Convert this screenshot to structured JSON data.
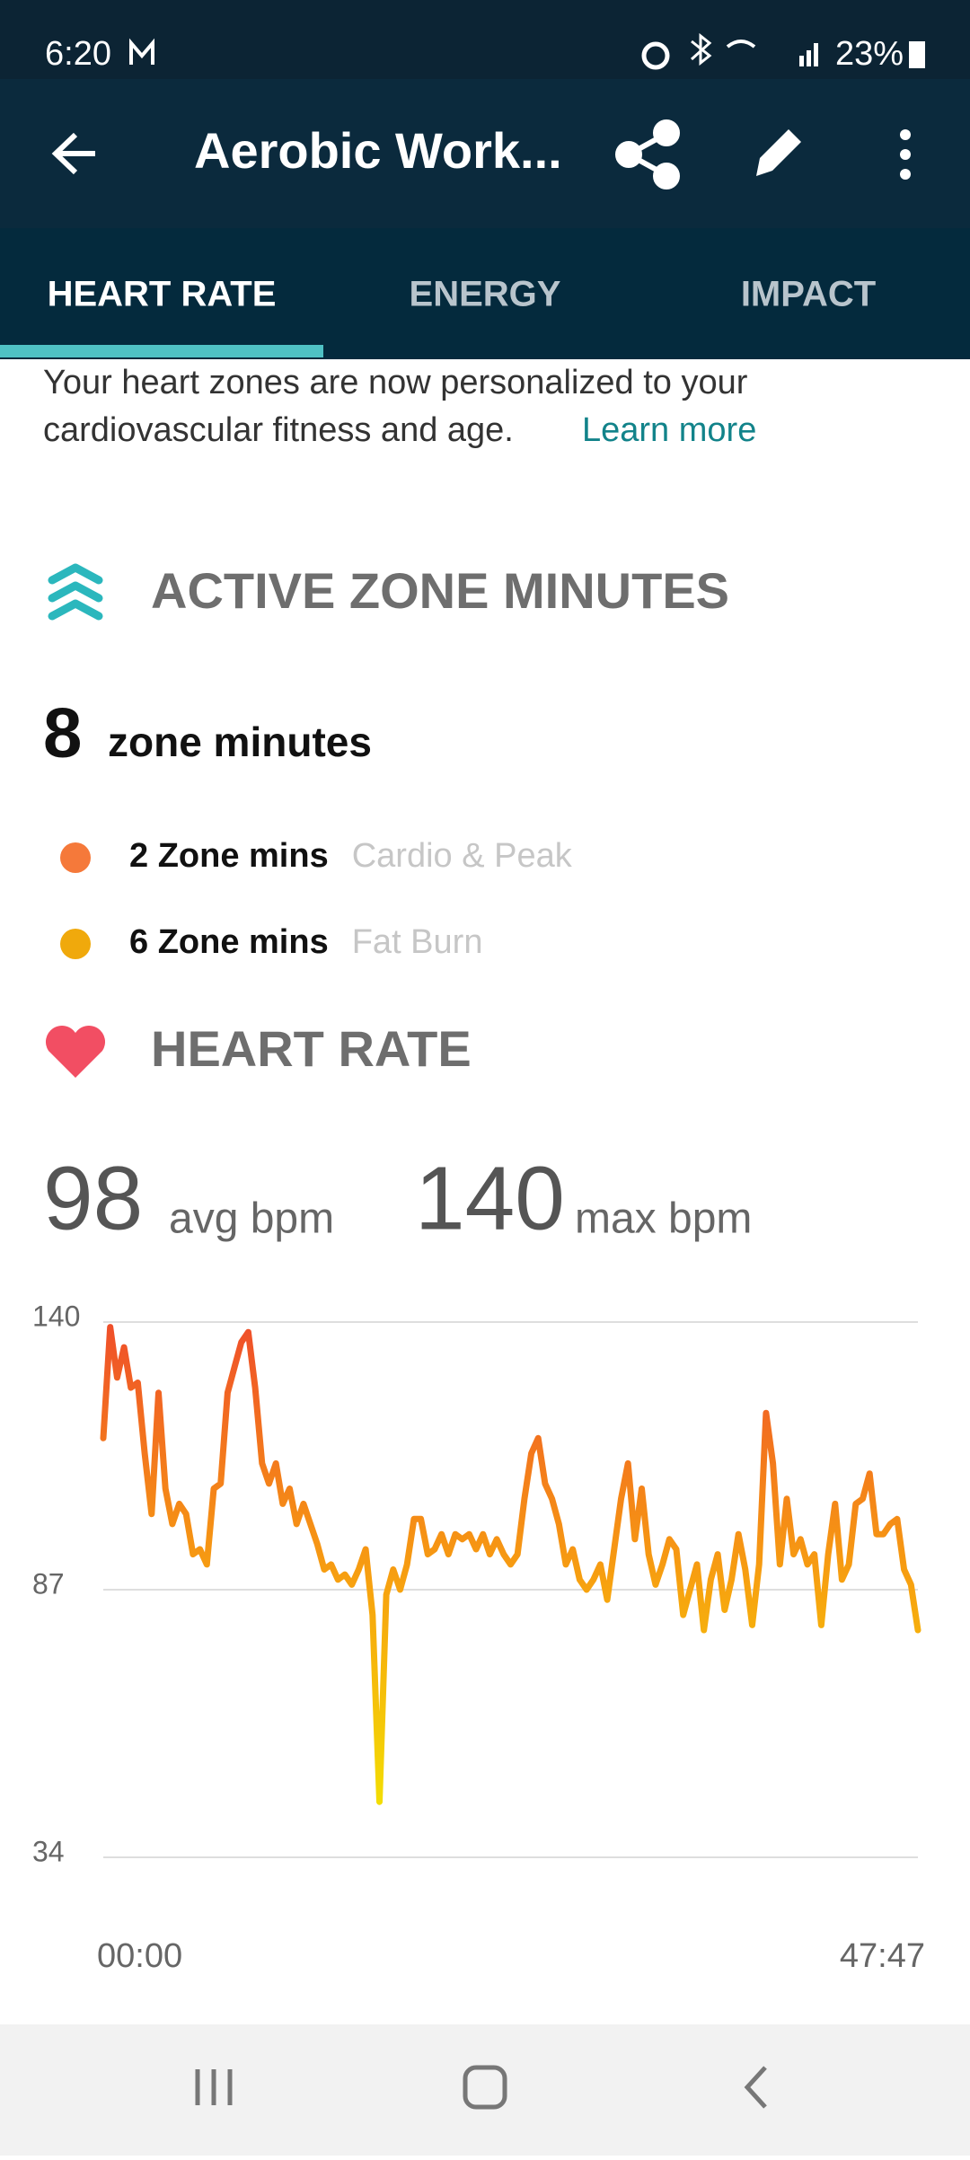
{
  "status_bar": {
    "time": "6:20",
    "battery": "23%"
  },
  "app_bar": {
    "title": "Aerobic Work..."
  },
  "tabs": [
    "HEART RATE",
    "ENERGY",
    "IMPACT"
  ],
  "notice": {
    "line1": "Your heart zones are now personalized to your",
    "line2": "cardiovascular fitness and age.",
    "link": "Learn more"
  },
  "azm": {
    "title": "ACTIVE ZONE MINUTES",
    "total": "8",
    "total_label": "zone minutes",
    "zones": [
      {
        "value": "2 Zone mins",
        "label": "Cardio & Peak",
        "color": "#f5793a"
      },
      {
        "value": "6 Zone mins",
        "label": "Fat Burn",
        "color": "#f0a90c"
      }
    ]
  },
  "heart_rate": {
    "title": "HEART RATE",
    "avg": "98",
    "avg_label": "avg bpm",
    "max": "140",
    "max_label": "max bpm"
  },
  "chart_data": {
    "type": "line",
    "x_labels": [
      "00:00",
      "47:47"
    ],
    "ylim": [
      34,
      140
    ],
    "yticks": [
      34,
      87,
      140
    ],
    "grid": true,
    "colors": [
      "#ef4e2a",
      "#f7a30f",
      "#f2ec00"
    ],
    "values": [
      117,
      139,
      129,
      135,
      127,
      128,
      114,
      102,
      126,
      107,
      100,
      104,
      102,
      94,
      95,
      92,
      107,
      108,
      126,
      131,
      136,
      138,
      127,
      112,
      108,
      112,
      104,
      107,
      100,
      104,
      100,
      96,
      91,
      92,
      89,
      90,
      88,
      91,
      95,
      82,
      45,
      86,
      91,
      87,
      92,
      101,
      101,
      94,
      95,
      98,
      94,
      98,
      97,
      98,
      95,
      98,
      94,
      97,
      94,
      92,
      94,
      105,
      114,
      117,
      108,
      105,
      100,
      92,
      95,
      89,
      87,
      89,
      92,
      85,
      95,
      105,
      112,
      97,
      107,
      94,
      88,
      92,
      97,
      95,
      82,
      87,
      92,
      79,
      89,
      94,
      83,
      89,
      98,
      91,
      80,
      92,
      122,
      112,
      92,
      105,
      94,
      97,
      92,
      94,
      80,
      94,
      104,
      89,
      92,
      104,
      105,
      110,
      98,
      98,
      100,
      101,
      91,
      88,
      79
    ]
  }
}
